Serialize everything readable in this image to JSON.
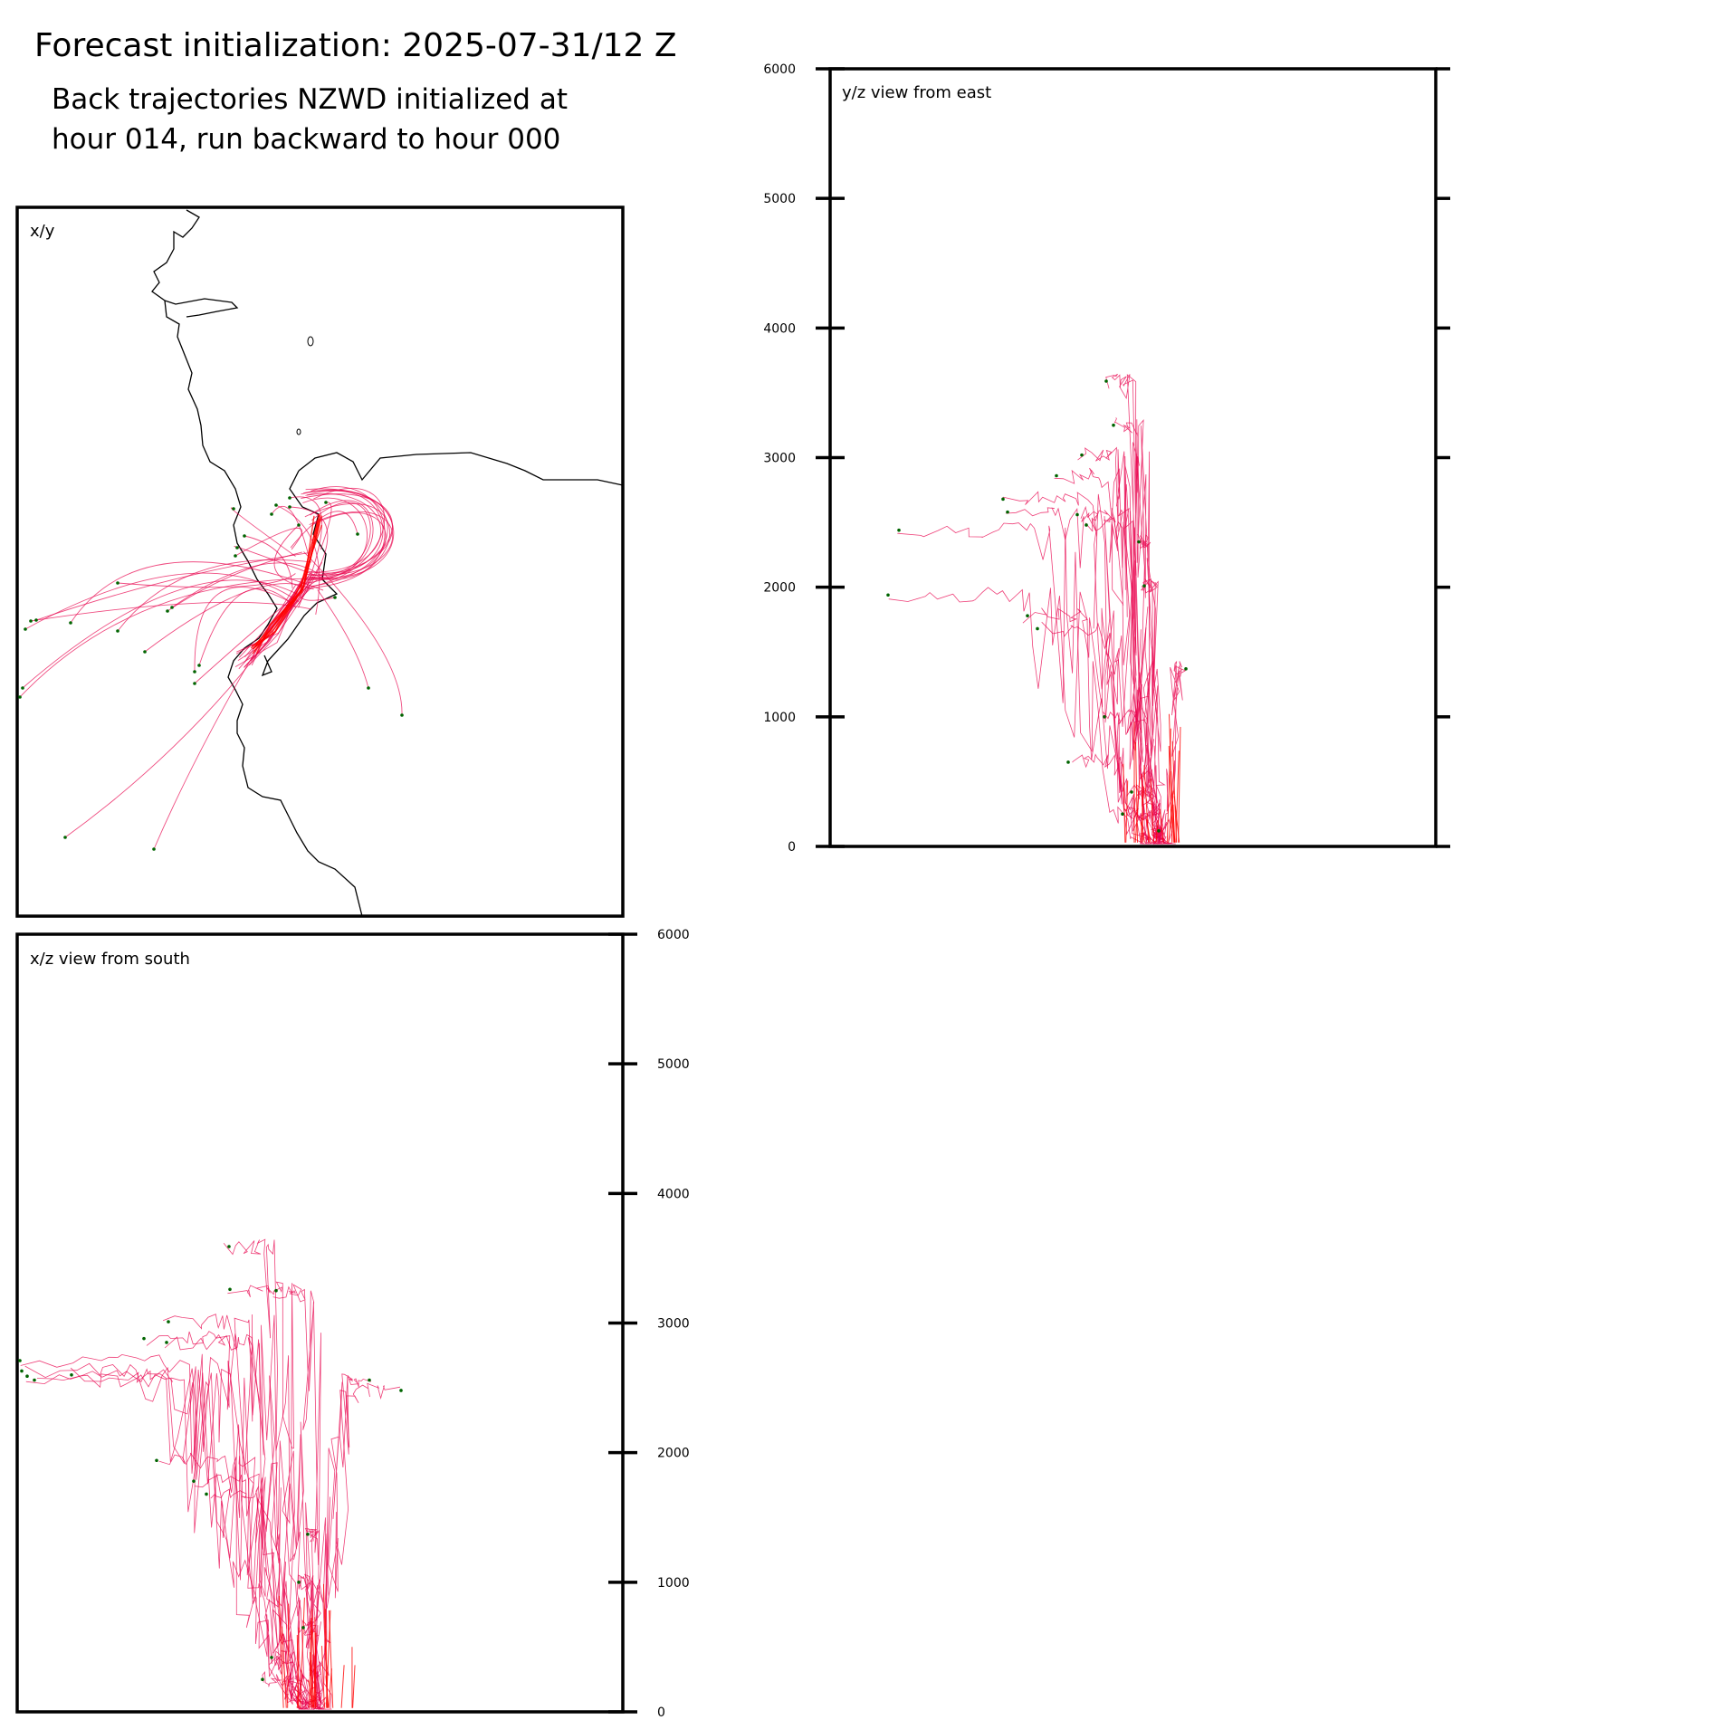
{
  "figure": {
    "title": "Forecast initialization: 2025-07-31/12 Z",
    "subtitle_lines": [
      "Back trajectories NZWD initialized at",
      "hour 014, run backward to hour 000"
    ]
  },
  "colors": {
    "trajectory": "#e8004c",
    "trajectory_core": "#ff0000",
    "start_point": "#006400",
    "coastline": "#000000",
    "frame": "#000000"
  },
  "chart_data": [
    {
      "id": "xy",
      "type": "map",
      "panel_label": "x/y",
      "description_of_marks": "coastline plus horizontal trajectory paths converging on NZWD",
      "coastline_shown": true,
      "grid": false,
      "legend": "none"
    },
    {
      "id": "yz",
      "type": "line",
      "panel_label": "y/z view from east",
      "ylim": [
        0,
        6000
      ],
      "y_ticks": [
        "0",
        "1000",
        "2000",
        "3000",
        "4000",
        "5000",
        "6000"
      ],
      "y_tick_side": "left",
      "grid": false,
      "legend": "none",
      "trajectory_start_heights_approx": [
        1940,
        2440,
        2680,
        2580,
        2860,
        3020,
        3250,
        3590,
        2560,
        2480,
        2350,
        2010,
        1780,
        1680,
        1370,
        1000,
        650,
        420,
        250,
        120
      ]
    },
    {
      "id": "xz",
      "type": "line",
      "panel_label": "x/z view from south",
      "ylim": [
        0,
        6000
      ],
      "y_ticks": [
        "0",
        "1000",
        "2000",
        "3000",
        "4000",
        "5000",
        "6000"
      ],
      "y_tick_side": "right",
      "grid": false,
      "legend": "none",
      "trajectory_start_heights_approx": [
        2710,
        2630,
        2590,
        2560,
        2600,
        2880,
        3010,
        2850,
        3260,
        3590,
        3250,
        2560,
        2480,
        1940,
        1780,
        1680,
        1370,
        1000,
        650,
        420,
        250
      ]
    }
  ]
}
